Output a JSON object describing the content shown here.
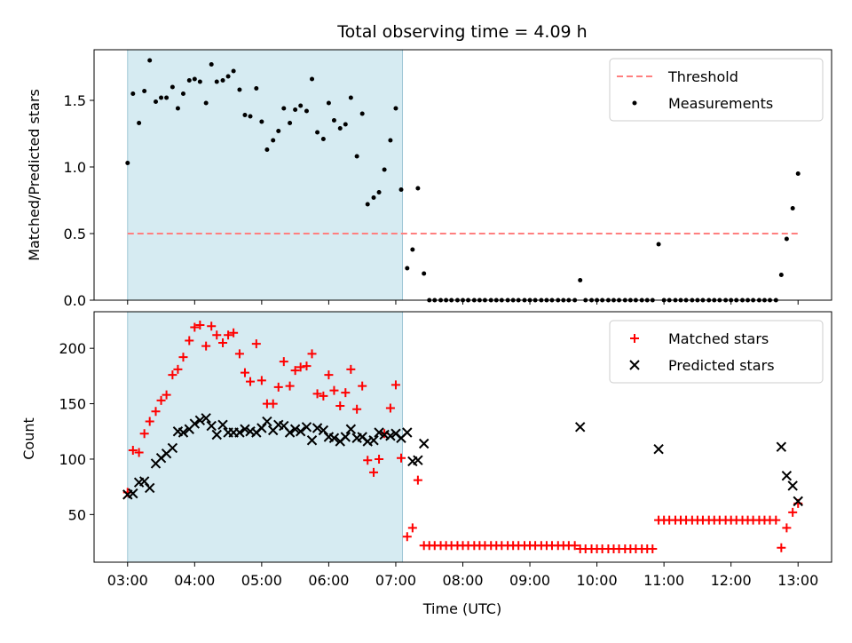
{
  "chart_data": {
    "title": "Total observing time = 4.09 h",
    "xlabel": "Time (UTC)",
    "x_unit": "hours UTC",
    "x_ticks": [
      "03:00",
      "04:00",
      "05:00",
      "06:00",
      "07:00",
      "08:00",
      "09:00",
      "10:00",
      "11:00",
      "12:00",
      "13:00"
    ],
    "x_tick_values": [
      3,
      4,
      5,
      6,
      7,
      8,
      9,
      10,
      11,
      12,
      13
    ],
    "xlim": [
      2.5,
      13.5
    ],
    "highlight_span": [
      3.0,
      7.1
    ],
    "highlight_color": "#add8e6",
    "panels": [
      {
        "type": "scatter",
        "ylabel": "Matched/Predicted stars",
        "ylim": [
          0,
          1.88
        ],
        "y_ticks": [
          "0.0",
          "0.5",
          "1.0",
          "1.5"
        ],
        "y_tick_values": [
          0,
          0.5,
          1.0,
          1.5
        ],
        "legend_position": "upper right",
        "threshold": {
          "name": "Threshold",
          "value": 0.5,
          "x_range": [
            3.0,
            13.0
          ],
          "color": "#ff7f7f"
        },
        "series": [
          {
            "name": "Measurements",
            "color": "#000000",
            "x": [
              3.0,
              3.08,
              3.17,
              3.25,
              3.33,
              3.42,
              3.5,
              3.58,
              3.67,
              3.75,
              3.83,
              3.92,
              4.0,
              4.08,
              4.17,
              4.25,
              4.33,
              4.42,
              4.5,
              4.58,
              4.67,
              4.75,
              4.83,
              4.92,
              5.0,
              5.08,
              5.17,
              5.25,
              5.33,
              5.42,
              5.5,
              5.58,
              5.67,
              5.75,
              5.83,
              5.92,
              6.0,
              6.08,
              6.17,
              6.25,
              6.33,
              6.42,
              6.5,
              6.58,
              6.67,
              6.75,
              6.83,
              6.92,
              7.0,
              7.08,
              7.17,
              7.25,
              7.33,
              7.42,
              7.5,
              7.58,
              7.67,
              7.75,
              7.83,
              7.92,
              8.0,
              8.08,
              8.17,
              8.25,
              8.33,
              8.42,
              8.5,
              8.58,
              8.67,
              8.75,
              8.83,
              8.92,
              9.0,
              9.08,
              9.17,
              9.25,
              9.33,
              9.42,
              9.5,
              9.58,
              9.67,
              9.75,
              9.83,
              9.92,
              10.0,
              10.08,
              10.17,
              10.25,
              10.33,
              10.42,
              10.5,
              10.58,
              10.67,
              10.75,
              10.83,
              10.92,
              11.0,
              11.08,
              11.17,
              11.25,
              11.33,
              11.42,
              11.5,
              11.58,
              11.67,
              11.75,
              11.83,
              11.92,
              12.0,
              12.08,
              12.17,
              12.25,
              12.33,
              12.42,
              12.5,
              12.58,
              12.67,
              12.75,
              12.83,
              12.92,
              13.0
            ],
            "y": [
              1.03,
              1.55,
              1.33,
              1.57,
              1.8,
              1.49,
              1.52,
              1.52,
              1.6,
              1.44,
              1.55,
              1.65,
              1.66,
              1.64,
              1.48,
              1.77,
              1.64,
              1.65,
              1.68,
              1.72,
              1.58,
              1.39,
              1.38,
              1.59,
              1.34,
              1.13,
              1.2,
              1.27,
              1.44,
              1.33,
              1.43,
              1.46,
              1.42,
              1.66,
              1.26,
              1.21,
              1.48,
              1.35,
              1.29,
              1.32,
              1.52,
              1.08,
              1.4,
              0.72,
              0.77,
              0.81,
              0.98,
              1.2,
              1.44,
              0.83,
              0.24,
              0.38,
              0.84,
              0.2,
              0,
              0,
              0,
              0,
              0,
              0,
              0,
              0,
              0,
              0,
              0,
              0,
              0,
              0,
              0,
              0,
              0,
              0,
              0,
              0,
              0,
              0,
              0,
              0,
              0,
              0,
              0,
              0.15,
              0,
              0,
              0,
              0,
              0,
              0,
              0,
              0,
              0,
              0,
              0,
              0,
              0,
              0.42,
              0,
              0,
              0,
              0,
              0,
              0,
              0,
              0,
              0,
              0,
              0,
              0,
              0,
              0,
              0,
              0,
              0,
              0,
              0,
              0,
              0,
              0.19,
              0.46,
              0.69,
              0.95
            ]
          }
        ]
      },
      {
        "type": "scatter",
        "ylabel": "Count",
        "ylim": [
          7,
          233
        ],
        "y_ticks": [
          "50",
          "100",
          "150",
          "200"
        ],
        "y_tick_values": [
          50,
          100,
          150,
          200
        ],
        "legend_position": "upper right",
        "series": [
          {
            "name": "Matched stars",
            "color": "#ff0000",
            "marker": "plus",
            "x": [
              3.0,
              3.08,
              3.17,
              3.25,
              3.33,
              3.42,
              3.5,
              3.58,
              3.67,
              3.75,
              3.83,
              3.92,
              4.0,
              4.08,
              4.17,
              4.25,
              4.33,
              4.42,
              4.5,
              4.58,
              4.67,
              4.75,
              4.83,
              4.92,
              5.0,
              5.08,
              5.17,
              5.25,
              5.33,
              5.42,
              5.5,
              5.58,
              5.67,
              5.75,
              5.83,
              5.92,
              6.0,
              6.08,
              6.17,
              6.25,
              6.33,
              6.42,
              6.5,
              6.58,
              6.67,
              6.75,
              6.83,
              6.92,
              7.0,
              7.08,
              7.17,
              7.25,
              7.33,
              7.42,
              7.5,
              7.58,
              7.67,
              7.75,
              7.83,
              7.92,
              8.0,
              8.08,
              8.17,
              8.25,
              8.33,
              8.42,
              8.5,
              8.58,
              8.67,
              8.75,
              8.83,
              8.92,
              9.0,
              9.08,
              9.17,
              9.25,
              9.33,
              9.42,
              9.5,
              9.58,
              9.67,
              9.75,
              9.83,
              9.92,
              10.0,
              10.08,
              10.17,
              10.25,
              10.33,
              10.42,
              10.5,
              10.58,
              10.67,
              10.75,
              10.83,
              10.92,
              11.0,
              11.08,
              11.17,
              11.25,
              11.33,
              11.42,
              11.5,
              11.58,
              11.67,
              11.75,
              11.83,
              11.92,
              12.0,
              12.08,
              12.17,
              12.25,
              12.33,
              12.42,
              12.5,
              12.58,
              12.67,
              12.75,
              12.83,
              12.92,
              13.0
            ],
            "y": [
              70,
              108,
              106,
              123,
              134,
              143,
              153,
              158,
              176,
              181,
              192,
              207,
              219,
              221,
              202,
              220,
              212,
              205,
              212,
              214,
              195,
              178,
              170,
              204,
              171,
              150,
              150,
              165,
              188,
              166,
              180,
              183,
              184,
              195,
              159,
              157,
              176,
              162,
              148,
              160,
              181,
              145,
              166,
              99,
              88,
              100,
              123,
              146,
              167,
              101,
              30,
              38,
              81,
              22,
              22,
              22,
              22,
              22,
              22,
              22,
              22,
              22,
              22,
              22,
              22,
              22,
              22,
              22,
              22,
              22,
              22,
              22,
              22,
              22,
              22,
              22,
              22,
              22,
              22,
              22,
              22,
              19,
              19,
              19,
              19,
              19,
              19,
              19,
              19,
              19,
              19,
              19,
              19,
              19,
              19,
              45,
              45,
              45,
              45,
              45,
              45,
              45,
              45,
              45,
              45,
              45,
              45,
              45,
              45,
              45,
              45,
              45,
              45,
              45,
              45,
              45,
              45,
              20,
              38,
              52,
              60
            ]
          },
          {
            "name": "Predicted stars",
            "color": "#000000",
            "marker": "x",
            "x": [
              3.0,
              3.08,
              3.17,
              3.25,
              3.33,
              3.42,
              3.5,
              3.58,
              3.67,
              3.75,
              3.83,
              3.92,
              4.0,
              4.08,
              4.17,
              4.25,
              4.33,
              4.42,
              4.5,
              4.58,
              4.67,
              4.75,
              4.83,
              4.92,
              5.0,
              5.08,
              5.17,
              5.25,
              5.33,
              5.42,
              5.5,
              5.58,
              5.67,
              5.75,
              5.83,
              5.92,
              6.0,
              6.08,
              6.17,
              6.25,
              6.33,
              6.42,
              6.5,
              6.58,
              6.67,
              6.75,
              6.83,
              6.92,
              7.0,
              7.08,
              7.17,
              7.25,
              7.33,
              7.42,
              9.75,
              10.92,
              12.75,
              12.83,
              12.92,
              13.0
            ],
            "y": [
              68,
              69,
              79,
              80,
              74,
              96,
              101,
              105,
              110,
              125,
              124,
              127,
              132,
              135,
              137,
              130,
              122,
              131,
              124,
              124,
              124,
              127,
              125,
              124,
              128,
              134,
              126,
              131,
              130,
              124,
              127,
              125,
              129,
              117,
              128,
              126,
              120,
              119,
              116,
              120,
              127,
              119,
              120,
              116,
              117,
              124,
              122,
              121,
              123,
              119,
              124,
              98,
              99,
              114,
              129,
              109,
              111,
              85,
              76,
              62
            ]
          }
        ]
      }
    ]
  }
}
